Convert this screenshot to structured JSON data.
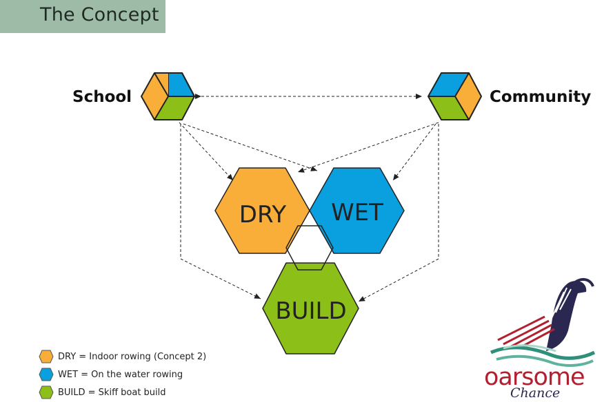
{
  "header": {
    "title": "The Concept"
  },
  "nodes": {
    "school": "School",
    "community": "Community"
  },
  "hexes": {
    "dry": "DRY",
    "wet": "WET",
    "build": "BUILD"
  },
  "legend": [
    {
      "label": "DRY = Indoor rowing (Concept 2)",
      "color": "#f9ae3a"
    },
    {
      "label": "WET = On the water rowing",
      "color": "#0aa0df"
    },
    {
      "label": "BUILD = Skiff  boat build",
      "color": "#8cbf18"
    }
  ],
  "logo": {
    "text": "oarsome",
    "subtext": "Chance"
  },
  "colors": {
    "dry": "#f9ae3a",
    "wet": "#0aa0df",
    "build": "#8cbf18",
    "header_bg": "#9dbba7"
  }
}
